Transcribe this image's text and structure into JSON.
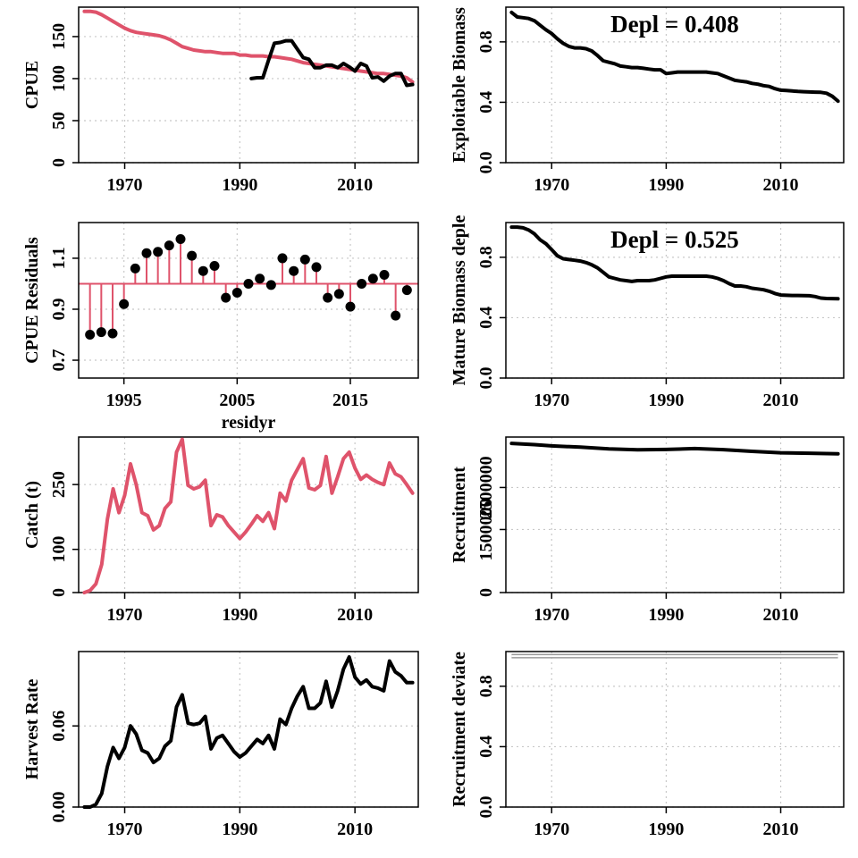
{
  "figure": {
    "colors": {
      "black": "#000000",
      "red": "#DF536B",
      "grid": "#C8C8C8",
      "panel_border": "#000000"
    }
  },
  "chart_data": [
    {
      "id": "cpue",
      "type": "line",
      "title": "",
      "xlabel": "",
      "ylabel": "CPUE",
      "xlim": [
        1962,
        2021
      ],
      "ylim": [
        0,
        185
      ],
      "xticks": [
        1970,
        1990,
        2010
      ],
      "yticks": [
        0,
        50,
        100,
        150
      ],
      "grid": true,
      "series": [
        {
          "color": "#DF536B",
          "x": [
            1963,
            1964,
            1965,
            1966,
            1967,
            1968,
            1969,
            1970,
            1971,
            1972,
            1973,
            1974,
            1975,
            1976,
            1977,
            1978,
            1979,
            1980,
            1981,
            1982,
            1983,
            1984,
            1985,
            1986,
            1987,
            1988,
            1989,
            1990,
            1991,
            1992,
            1993,
            1994,
            1995,
            1996,
            1997,
            1998,
            1999,
            2000,
            2001,
            2002,
            2003,
            2004,
            2005,
            2006,
            2007,
            2008,
            2009,
            2010,
            2011,
            2012,
            2013,
            2014,
            2015,
            2016,
            2017,
            2018,
            2019,
            2020
          ],
          "y": [
            180,
            180,
            179,
            176,
            172,
            168,
            164,
            160,
            157,
            155,
            154,
            153,
            152,
            151,
            149,
            146,
            142,
            138,
            136,
            134,
            133,
            132,
            132,
            131,
            130,
            130,
            130,
            128,
            128,
            127,
            127,
            127,
            126,
            126,
            125,
            124,
            123,
            121,
            119,
            118,
            117,
            116,
            115,
            114,
            113,
            112,
            111,
            110,
            109,
            108,
            107,
            106,
            106,
            105,
            104,
            103,
            101,
            96
          ]
        },
        {
          "color": "#000000",
          "x": [
            1992,
            1993,
            1994,
            1995,
            1996,
            1997,
            1998,
            1999,
            2000,
            2001,
            2002,
            2003,
            2004,
            2005,
            2006,
            2007,
            2008,
            2009,
            2010,
            2011,
            2012,
            2013,
            2014,
            2015,
            2016,
            2017,
            2018,
            2019,
            2020
          ],
          "y": [
            100,
            101,
            101,
            122,
            142,
            143,
            145,
            145,
            135,
            125,
            123,
            113,
            113,
            116,
            116,
            113,
            118,
            114,
            109,
            118,
            115,
            101,
            102,
            97,
            103,
            106,
            106,
            92,
            93
          ]
        }
      ]
    },
    {
      "id": "exploitable",
      "type": "line",
      "title": "",
      "xlabel": "",
      "ylabel": "Exploitable Biomass",
      "xlim": [
        1962,
        2021
      ],
      "ylim": [
        0,
        1.03
      ],
      "xticks": [
        1970,
        1990,
        2010
      ],
      "yticks": [
        0,
        0.4,
        0.8
      ],
      "ytick_labels": [
        "0.0",
        "0.4",
        "0.8"
      ],
      "grid": true,
      "annotation": "Depl = 0.408",
      "series": [
        {
          "color": "#000000",
          "x": [
            1963,
            1964,
            1965,
            1966,
            1967,
            1968,
            1969,
            1970,
            1971,
            1972,
            1973,
            1974,
            1975,
            1976,
            1977,
            1978,
            1979,
            1980,
            1981,
            1982,
            1983,
            1984,
            1985,
            1986,
            1987,
            1988,
            1989,
            1990,
            1991,
            1992,
            1993,
            1994,
            1995,
            1996,
            1997,
            1998,
            1999,
            2000,
            2001,
            2002,
            2003,
            2004,
            2005,
            2006,
            2007,
            2008,
            2009,
            2010,
            2011,
            2012,
            2013,
            2014,
            2015,
            2016,
            2017,
            2018,
            2019,
            2020
          ],
          "y": [
            0.995,
            0.965,
            0.96,
            0.955,
            0.94,
            0.91,
            0.88,
            0.855,
            0.82,
            0.79,
            0.77,
            0.76,
            0.76,
            0.755,
            0.74,
            0.71,
            0.675,
            0.665,
            0.655,
            0.64,
            0.635,
            0.63,
            0.63,
            0.625,
            0.62,
            0.615,
            0.615,
            0.59,
            0.595,
            0.6,
            0.6,
            0.6,
            0.6,
            0.6,
            0.6,
            0.595,
            0.59,
            0.575,
            0.56,
            0.545,
            0.54,
            0.535,
            0.525,
            0.52,
            0.51,
            0.505,
            0.49,
            0.48,
            0.478,
            0.475,
            0.472,
            0.47,
            0.468,
            0.467,
            0.466,
            0.46,
            0.44,
            0.408
          ]
        }
      ]
    },
    {
      "id": "residuals",
      "type": "scatter",
      "title": "",
      "xlabel": "residyr",
      "ylabel": "CPUE Residuals",
      "xlim": [
        1991,
        2021
      ],
      "ylim": [
        0.63,
        1.24
      ],
      "xticks": [
        1995,
        2005,
        2015
      ],
      "yticks": [
        0.7,
        0.9,
        1.1
      ],
      "grid": true,
      "reference_line": 1.0,
      "series": [
        {
          "color": "#000000",
          "stem_color": "#DF536B",
          "x": [
            1992,
            1993,
            1994,
            1995,
            1996,
            1997,
            1998,
            1999,
            2000,
            2001,
            2002,
            2003,
            2004,
            2005,
            2006,
            2007,
            2008,
            2009,
            2010,
            2011,
            2012,
            2013,
            2014,
            2015,
            2016,
            2017,
            2018,
            2019,
            2020
          ],
          "y": [
            0.8,
            0.81,
            0.805,
            0.92,
            1.06,
            1.12,
            1.125,
            1.15,
            1.175,
            1.11,
            1.05,
            1.07,
            0.945,
            0.965,
            1.0,
            1.02,
            0.995,
            1.1,
            1.05,
            1.095,
            1.065,
            0.945,
            0.96,
            0.91,
            1.0,
            1.02,
            1.035,
            0.875,
            0.975
          ]
        }
      ]
    },
    {
      "id": "mature",
      "type": "line",
      "title": "",
      "xlabel": "",
      "ylabel": "Mature Biomass deple",
      "xlim": [
        1962,
        2021
      ],
      "ylim": [
        0,
        1.03
      ],
      "xticks": [
        1970,
        1990,
        2010
      ],
      "yticks": [
        0,
        0.4,
        0.8
      ],
      "ytick_labels": [
        "0.0",
        "0.4",
        "0.8"
      ],
      "grid": true,
      "annotation": "Depl = 0.525",
      "series": [
        {
          "color": "#000000",
          "x": [
            1963,
            1964,
            1965,
            1966,
            1967,
            1968,
            1969,
            1970,
            1971,
            1972,
            1973,
            1974,
            1975,
            1976,
            1977,
            1978,
            1979,
            1980,
            1981,
            1982,
            1983,
            1984,
            1985,
            1986,
            1987,
            1988,
            1989,
            1990,
            1991,
            1992,
            1993,
            1994,
            1995,
            1996,
            1997,
            1998,
            1999,
            2000,
            2001,
            2002,
            2003,
            2004,
            2005,
            2006,
            2007,
            2008,
            2009,
            2010,
            2011,
            2012,
            2013,
            2014,
            2015,
            2016,
            2017,
            2018,
            2019,
            2020
          ],
          "y": [
            1.0,
            1.0,
            0.995,
            0.98,
            0.955,
            0.915,
            0.89,
            0.85,
            0.81,
            0.79,
            0.785,
            0.78,
            0.775,
            0.765,
            0.75,
            0.73,
            0.7,
            0.67,
            0.66,
            0.65,
            0.645,
            0.64,
            0.645,
            0.645,
            0.645,
            0.65,
            0.66,
            0.67,
            0.675,
            0.675,
            0.675,
            0.675,
            0.675,
            0.675,
            0.675,
            0.67,
            0.66,
            0.645,
            0.625,
            0.61,
            0.61,
            0.605,
            0.595,
            0.59,
            0.585,
            0.575,
            0.56,
            0.55,
            0.548,
            0.547,
            0.547,
            0.546,
            0.545,
            0.54,
            0.53,
            0.527,
            0.526,
            0.525
          ]
        }
      ]
    },
    {
      "id": "catch",
      "type": "line",
      "title": "",
      "xlabel": "",
      "ylabel": "Catch (t)",
      "xlim": [
        1962,
        2021
      ],
      "ylim": [
        0,
        360
      ],
      "xticks": [
        1970,
        1990,
        2010
      ],
      "yticks": [
        0,
        100,
        250
      ],
      "grid": true,
      "series": [
        {
          "color": "#DF536B",
          "x": [
            1963,
            1964,
            1965,
            1966,
            1967,
            1968,
            1969,
            1970,
            1971,
            1972,
            1973,
            1974,
            1975,
            1976,
            1977,
            1978,
            1979,
            1980,
            1981,
            1982,
            1983,
            1984,
            1985,
            1986,
            1987,
            1988,
            1989,
            1990,
            1991,
            1992,
            1993,
            1994,
            1995,
            1996,
            1997,
            1998,
            1999,
            2000,
            2001,
            2002,
            2003,
            2004,
            2005,
            2006,
            2007,
            2008,
            2009,
            2010,
            2011,
            2012,
            2013,
            2014,
            2015,
            2016,
            2017,
            2018,
            2019,
            2020
          ],
          "y": [
            0,
            5,
            20,
            65,
            170,
            240,
            185,
            225,
            298,
            250,
            185,
            178,
            145,
            155,
            195,
            210,
            325,
            355,
            248,
            240,
            245,
            260,
            155,
            180,
            175,
            155,
            140,
            125,
            140,
            158,
            178,
            165,
            185,
            148,
            230,
            212,
            260,
            285,
            310,
            242,
            238,
            248,
            315,
            230,
            268,
            310,
            325,
            288,
            262,
            272,
            262,
            255,
            250,
            300,
            275,
            268,
            250,
            230
          ]
        }
      ]
    },
    {
      "id": "recruitment",
      "type": "line",
      "title": "",
      "xlabel": "",
      "ylabel": "Recruitment",
      "xlim": [
        1962,
        2021
      ],
      "ylim": [
        0,
        3700000
      ],
      "xticks": [
        1970,
        1990,
        2010
      ],
      "yticks": [
        0,
        1500000,
        2500000
      ],
      "ytick_labels": [
        "0",
        "1500000",
        "2500000"
      ],
      "grid": true,
      "series": [
        {
          "color": "#000000",
          "x": [
            1963,
            1967,
            1970,
            1975,
            1980,
            1985,
            1990,
            1995,
            2000,
            2005,
            2010,
            2015,
            2020
          ],
          "y": [
            3550000,
            3520000,
            3490000,
            3460000,
            3420000,
            3395000,
            3405000,
            3425000,
            3400000,
            3360000,
            3325000,
            3315000,
            3300000
          ]
        }
      ]
    },
    {
      "id": "harvest",
      "type": "line",
      "title": "",
      "xlabel": "",
      "ylabel": "Harvest Rate",
      "xlim": [
        1962,
        2021
      ],
      "ylim": [
        0,
        0.115
      ],
      "xticks": [
        1970,
        1990,
        2010
      ],
      "yticks": [
        0,
        0.06
      ],
      "ytick_labels": [
        "0.00",
        "0.06"
      ],
      "grid": true,
      "series": [
        {
          "color": "#000000",
          "x": [
            1963,
            1964,
            1965,
            1966,
            1967,
            1968,
            1969,
            1970,
            1971,
            1972,
            1973,
            1974,
            1975,
            1976,
            1977,
            1978,
            1979,
            1980,
            1981,
            1982,
            1983,
            1984,
            1985,
            1986,
            1987,
            1988,
            1989,
            1990,
            1991,
            1992,
            1993,
            1994,
            1995,
            1996,
            1997,
            1998,
            1999,
            2000,
            2001,
            2002,
            2003,
            2004,
            2005,
            2006,
            2007,
            2008,
            2009,
            2010,
            2011,
            2012,
            2013,
            2014,
            2015,
            2016,
            2017,
            2018,
            2019,
            2020
          ],
          "y": [
            0,
            0,
            0.002,
            0.01,
            0.03,
            0.044,
            0.036,
            0.044,
            0.06,
            0.054,
            0.042,
            0.04,
            0.033,
            0.036,
            0.045,
            0.049,
            0.074,
            0.083,
            0.062,
            0.061,
            0.062,
            0.067,
            0.043,
            0.051,
            0.053,
            0.047,
            0.041,
            0.037,
            0.04,
            0.045,
            0.05,
            0.047,
            0.053,
            0.043,
            0.065,
            0.061,
            0.073,
            0.082,
            0.089,
            0.073,
            0.073,
            0.077,
            0.093,
            0.074,
            0.086,
            0.102,
            0.111,
            0.096,
            0.091,
            0.094,
            0.089,
            0.088,
            0.086,
            0.108,
            0.1,
            0.097,
            0.092,
            0.092
          ]
        }
      ]
    },
    {
      "id": "recdev",
      "type": "line",
      "title": "",
      "xlabel": "",
      "ylabel": "Recruitment deviate",
      "xlim": [
        1962,
        2021
      ],
      "ylim": [
        0,
        1.03
      ],
      "xticks": [
        1970,
        1990,
        2010
      ],
      "yticks": [
        0,
        0.4,
        0.8
      ],
      "ytick_labels": [
        "0.0",
        "0.4",
        "0.8"
      ],
      "grid": true,
      "series": [
        {
          "color": "#000000",
          "x": [
            1963,
            2020
          ],
          "y": [
            1.0,
            1.0
          ]
        }
      ]
    }
  ]
}
